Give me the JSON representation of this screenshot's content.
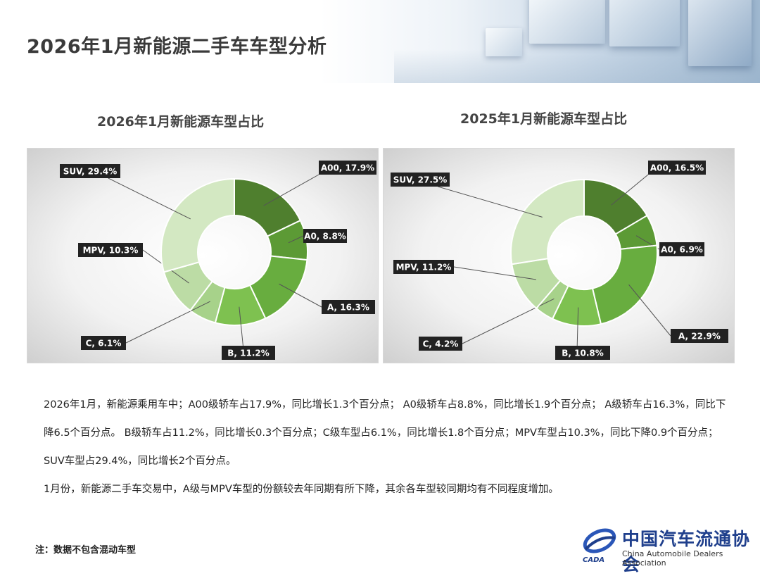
{
  "page": {
    "title": "2026年1月新能源二手车车型分析",
    "footnote": "注：数据不包含混动车型",
    "logo": {
      "cn": "中国汽车流通协会",
      "en": "China Automobile Dealers Association",
      "abbr": "CADA"
    }
  },
  "text": {
    "para1": "2026年1月，新能源乘用车中；A00级轿车占17.9%，同比增长1.3个百分点； A0级轿车占8.8%，同比增长1.9个百分点； A级轿车占16.3%，同比下降6.5个百分点。 B级轿车占11.2%，同比增长0.3个百分点；C级车型占6.1%，同比增长1.8个百分点；MPV车型占10.3%，同比下降0.9个百分点； SUV车型占29.4%，同比增长2个百分点。",
    "para2": "1月份，新能源二手车交易中，A级与MPV车型的份额较去年同期有所下降，其余各车型较同期均有不同程度增加。"
  },
  "colors": {
    "A00": "#4f7f2e",
    "A0": "#5c9a35",
    "A": "#68ad3f",
    "B": "#7ec150",
    "C": "#a7d28a",
    "MPV": "#bcdca5",
    "SUV": "#d3e8c2",
    "label_bg": "#222222",
    "label_fg": "#ffffff"
  },
  "chart_data": [
    {
      "type": "pie",
      "title": "2026年1月新能源车型占比",
      "categories": [
        "A00",
        "A0",
        "A",
        "B",
        "C",
        "MPV",
        "SUV"
      ],
      "values": [
        17.9,
        8.8,
        16.3,
        11.2,
        6.1,
        10.3,
        29.4
      ],
      "labels": [
        "A00, 17.9%",
        "A0, 8.8%",
        "A, 16.3%",
        "B, 11.2%",
        "C, 6.1%",
        "MPV, 10.3%",
        "SUV, 29.4%"
      ],
      "donut": true
    },
    {
      "type": "pie",
      "title": "2025年1月新能源车型占比",
      "categories": [
        "A00",
        "A0",
        "A",
        "B",
        "C",
        "MPV",
        "SUV"
      ],
      "values": [
        16.5,
        6.9,
        22.9,
        10.8,
        4.2,
        11.2,
        27.5
      ],
      "labels": [
        "A00, 16.5%",
        "A0, 6.9%",
        "A, 22.9%",
        "B, 10.8%",
        "C, 4.2%",
        "MPV, 11.2%",
        "SUV, 27.5%"
      ],
      "donut": true
    }
  ]
}
